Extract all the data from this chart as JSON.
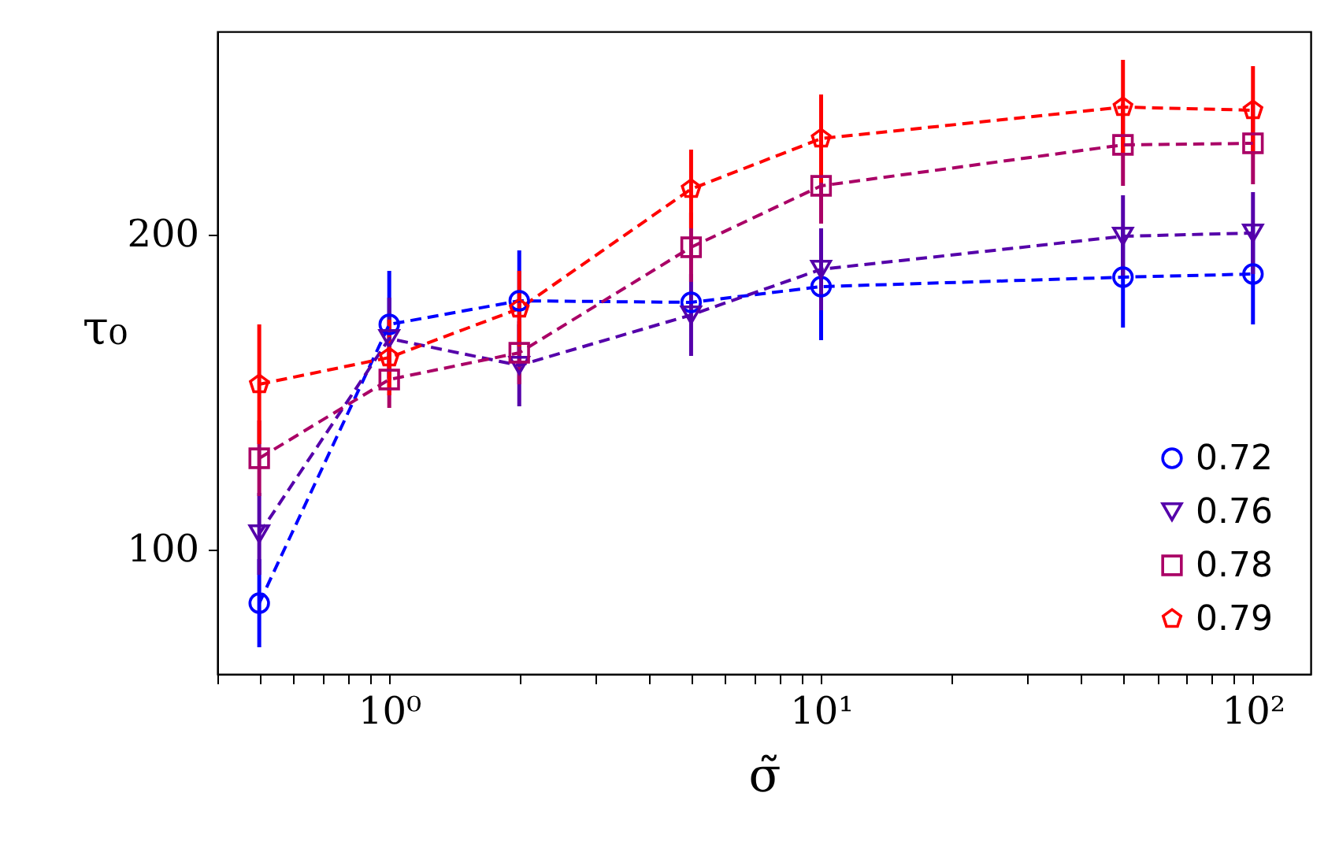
{
  "chart_data": {
    "type": "line",
    "xlabel": "σ̃",
    "ylabel": "τ₀",
    "log": "x",
    "grid": false,
    "legend": "bottom right",
    "line_style": "dashed",
    "x": [
      0.5,
      1,
      2,
      5,
      10,
      50,
      100
    ],
    "xlim": [
      0.4,
      136
    ],
    "ylim": [
      60.5,
      264.5
    ],
    "xticks": [
      {
        "value": 0.4,
        "label": null
      },
      {
        "value": 0.5,
        "label": null
      },
      {
        "value": 0.6,
        "label": null
      },
      {
        "value": 0.7,
        "label": null
      },
      {
        "value": 0.8,
        "label": null
      },
      {
        "value": 0.9,
        "label": null
      },
      {
        "value": 1,
        "label": "10⁰"
      },
      {
        "value": 2,
        "label": null
      },
      {
        "value": 3,
        "label": null
      },
      {
        "value": 4,
        "label": null
      },
      {
        "value": 5,
        "label": null
      },
      {
        "value": 6,
        "label": null
      },
      {
        "value": 7,
        "label": null
      },
      {
        "value": 8,
        "label": null
      },
      {
        "value": 9,
        "label": null
      },
      {
        "value": 10,
        "label": "10¹"
      },
      {
        "value": 20,
        "label": null
      },
      {
        "value": 30,
        "label": null
      },
      {
        "value": 40,
        "label": null
      },
      {
        "value": 50,
        "label": null
      },
      {
        "value": 60,
        "label": null
      },
      {
        "value": 70,
        "label": null
      },
      {
        "value": 80,
        "label": null
      },
      {
        "value": 90,
        "label": null
      },
      {
        "value": 100,
        "label": "10²"
      }
    ],
    "yticks": [
      100,
      200
    ],
    "series": [
      {
        "name": "0.72",
        "color": "#0000ff",
        "marker": "circle",
        "values": [
          83,
          171.5,
          179,
          178.5,
          183.5,
          186.5,
          187.5
        ],
        "errors": [
          14,
          17,
          16,
          null,
          17,
          16,
          16
        ]
      },
      {
        "name": "0.76",
        "color": "#5500aa",
        "marker": "triangle",
        "values": [
          105,
          167,
          158.5,
          174.5,
          189,
          199.5,
          200.5
        ],
        "errors": [
          13,
          13,
          13,
          13,
          13,
          13,
          13
        ]
      },
      {
        "name": "0.78",
        "color": "#aa0066",
        "marker": "square",
        "values": [
          129,
          154,
          162.5,
          196,
          215.5,
          228.5,
          229
        ],
        "errors": [
          12,
          9,
          10,
          11,
          12,
          13,
          13
        ]
      },
      {
        "name": "0.79",
        "color": "#ff0000",
        "marker": "star",
        "values": [
          152.5,
          161,
          176.5,
          214.5,
          230.5,
          240.5,
          239.5
        ],
        "errors": [
          19,
          12,
          12,
          12.5,
          14,
          15,
          14
        ]
      }
    ]
  }
}
